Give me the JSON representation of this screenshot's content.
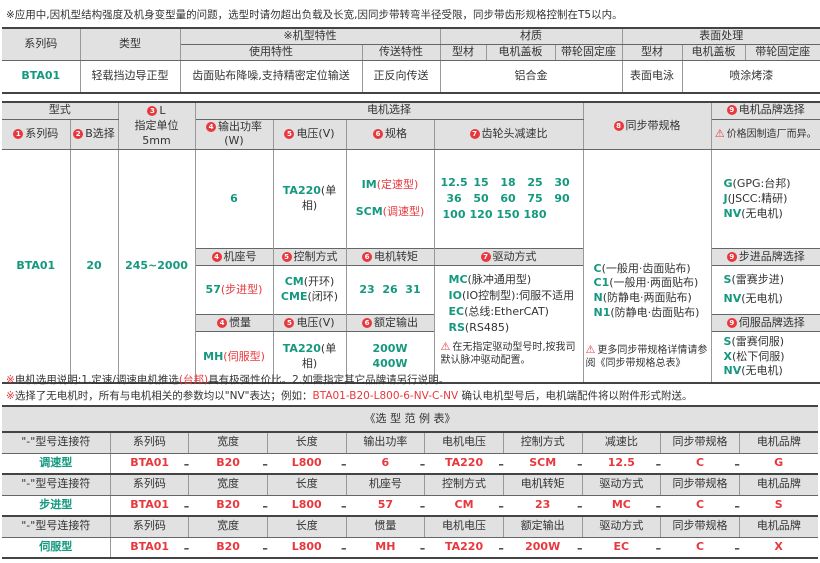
{
  "top_note": "※应用中,因机型结构强度及机身变型量的问题，选型时请勿超出负载及长宽,因同步带转弯半径受限，同步带齿形规格控制在T5以内。",
  "t1": {
    "h_series": "系列码",
    "h_type": "类型",
    "h_feature": "※机型特性",
    "h_material": "材质",
    "h_surface": "表面处理",
    "h_use": "使用特性",
    "h_transfer": "传送特性",
    "h_profile": "型材",
    "h_cover": "电机盖板",
    "h_seat": "带轮固定座",
    "h_profile2": "型材",
    "h_cover2": "电机盖板",
    "h_seat2": "带轮固定座",
    "series": "BTA01",
    "type": "轻载挡边导正型",
    "use": "齿面贴布降噪,支持精密定位输送",
    "transfer": "正反向传送",
    "material": "铝合金",
    "surface_profile": "表面电泳",
    "surface_other": "喷涂烤漆"
  },
  "t2": {
    "h_model": "型式",
    "h_l_num": "3",
    "h_l": "L",
    "h_l_unit": "指定单位5mm",
    "h_motor": "电机选择",
    "h_belt_num": "8",
    "h_belt": "同步带规格",
    "h_brand_num": "9",
    "h_brand": "电机品牌选择",
    "brand_warn": "价格因制造厂而异。",
    "h_series_num": "1",
    "h_series": "系列码",
    "h_b_num": "2",
    "h_b": "B选择",
    "h_power_num": "4",
    "h_power": "输出功率(W)",
    "h_volt_num": "5",
    "h_volt": "电压(V)",
    "h_spec_num": "6",
    "h_spec": "规格",
    "h_gear_num": "7",
    "h_gear": "齿轮头减速比",
    "series": "BTA01",
    "b": "20",
    "l": "245~2000",
    "power": "6",
    "volt": "TA220",
    "volt_suffix": "(单相)",
    "spec": [
      {
        "code": "IM",
        "desc": "(定速型)"
      },
      {
        "code": "SCM",
        "desc": "(调速型)"
      }
    ],
    "ratios": [
      [
        "12.5",
        "15",
        "18",
        "25",
        "30"
      ],
      [
        "36",
        "50",
        "60",
        "75",
        "90"
      ],
      [
        "100",
        "120",
        "150",
        "180"
      ]
    ],
    "brands": [
      {
        "code": "G",
        "desc": "(GPG:台邦)"
      },
      {
        "code": "J",
        "desc": "(JSCC:精研)"
      },
      {
        "code": "NV",
        "desc": "(无电机)"
      }
    ],
    "belts": [
      {
        "code": "C",
        "desc": "(一般用·齿面贴布)"
      },
      {
        "code": "C1",
        "desc": "(一般用·两面贴布)"
      },
      {
        "code": "N",
        "desc": "(防静电·两面贴布)"
      },
      {
        "code": "N1",
        "desc": "(防静电·齿面贴布)"
      }
    ],
    "belt_note": "更多同步带规格详情请参阅《同步带规格总表》",
    "h_frame_num": "4",
    "h_frame": "机座号",
    "h_ctrl_num": "5",
    "h_ctrl": "控制方式",
    "h_torque_num": "6",
    "h_torque": "电机转矩",
    "h_drive_num": "7",
    "h_drive": "驱动方式",
    "h_step_brand_num": "9",
    "h_step_brand": "步进品牌选择",
    "frame": "57",
    "frame_desc": "(步进型)",
    "ctrl": [
      {
        "code": "CM",
        "desc": "(开环)"
      },
      {
        "code": "CME",
        "desc": "(闭环)"
      }
    ],
    "torque": "23  26  31",
    "drives": [
      {
        "code": "MC",
        "desc": "(脉冲通用型)"
      },
      {
        "code": "IO",
        "desc": "(IO控制型):伺服不适用"
      },
      {
        "code": "EC",
        "desc": "(总线:EtherCAT)"
      },
      {
        "code": "RS",
        "desc": "(RS485)"
      }
    ],
    "drive_note": "在无指定驱动型号时,按我司默认脉冲驱动配置。",
    "step_brands": [
      {
        "code": "S",
        "desc": "(雷赛步进)"
      },
      {
        "code": "NV",
        "desc": "(无电机)"
      }
    ],
    "h_inertia_num": "4",
    "h_inertia": "惯量",
    "h_volt2_num": "5",
    "h_volt2": "电压(V)",
    "h_rated_num": "6",
    "h_rated": "额定输出",
    "h_servo_brand_num": "9",
    "h_servo_brand": "伺服品牌选择",
    "inertia": "MH",
    "inertia_desc": "(伺服型)",
    "volt2": "TA220",
    "volt2_suffix": "(单相)",
    "rated": [
      "200W",
      "400W"
    ],
    "servo_brands": [
      {
        "code": "S",
        "desc": "(雷赛伺服)"
      },
      {
        "code": "X",
        "desc": "(松下伺服)"
      },
      {
        "code": "NV",
        "desc": "(无电机)"
      }
    ]
  },
  "note1": {
    "a": "※",
    "b": "电机选用说明:1.定速/调速电机推选",
    "c": "(台邦)",
    "d": "具有极强性价比。2.如需指定其它品牌请另行说明。"
  },
  "note2": {
    "a": "※",
    "b": "选择了无电机时，所有与电机相关的参数均以\"NV\"表达；例如：",
    "c": "BTA01-B20-L800-6-NV-C-NV",
    "d": "  确认电机型号后，电机端配件将以附件形式附送。"
  },
  "t3": {
    "title": "《选 型 范 例 表》",
    "rows": [
      {
        "connector": "\"-\"型号连接符",
        "headers": [
          "系列码",
          "宽度",
          "长度",
          "输出功率",
          "电机电压",
          "控制方式",
          "减速比",
          "同步带规格",
          "电机品牌"
        ],
        "label": "调速型",
        "values": [
          "BTA01",
          "B20",
          "L800",
          "6",
          "TA220",
          "SCM",
          "12.5",
          "C",
          "G"
        ]
      },
      {
        "connector": "\"-\"型号连接符",
        "headers": [
          "系列码",
          "宽度",
          "长度",
          "机座号",
          "控制方式",
          "电机转矩",
          "驱动方式",
          "同步带规格",
          "电机品牌"
        ],
        "label": "步进型",
        "values": [
          "BTA01",
          "B20",
          "L800",
          "57",
          "CM",
          "23",
          "MC",
          "C",
          "S"
        ]
      },
      {
        "connector": "\"-\"型号连接符",
        "headers": [
          "系列码",
          "宽度",
          "长度",
          "惯量",
          "电机电压",
          "额定输出",
          "驱动方式",
          "同步带规格",
          "电机品牌"
        ],
        "label": "伺服型",
        "values": [
          "BTA01",
          "B20",
          "L800",
          "MH",
          "TA220",
          "200W",
          "EC",
          "C",
          "X"
        ]
      }
    ],
    "dash": "–"
  },
  "colors": {
    "green": "#14997f",
    "red": "#e8383d",
    "header_bg": "#e1e1e1"
  }
}
